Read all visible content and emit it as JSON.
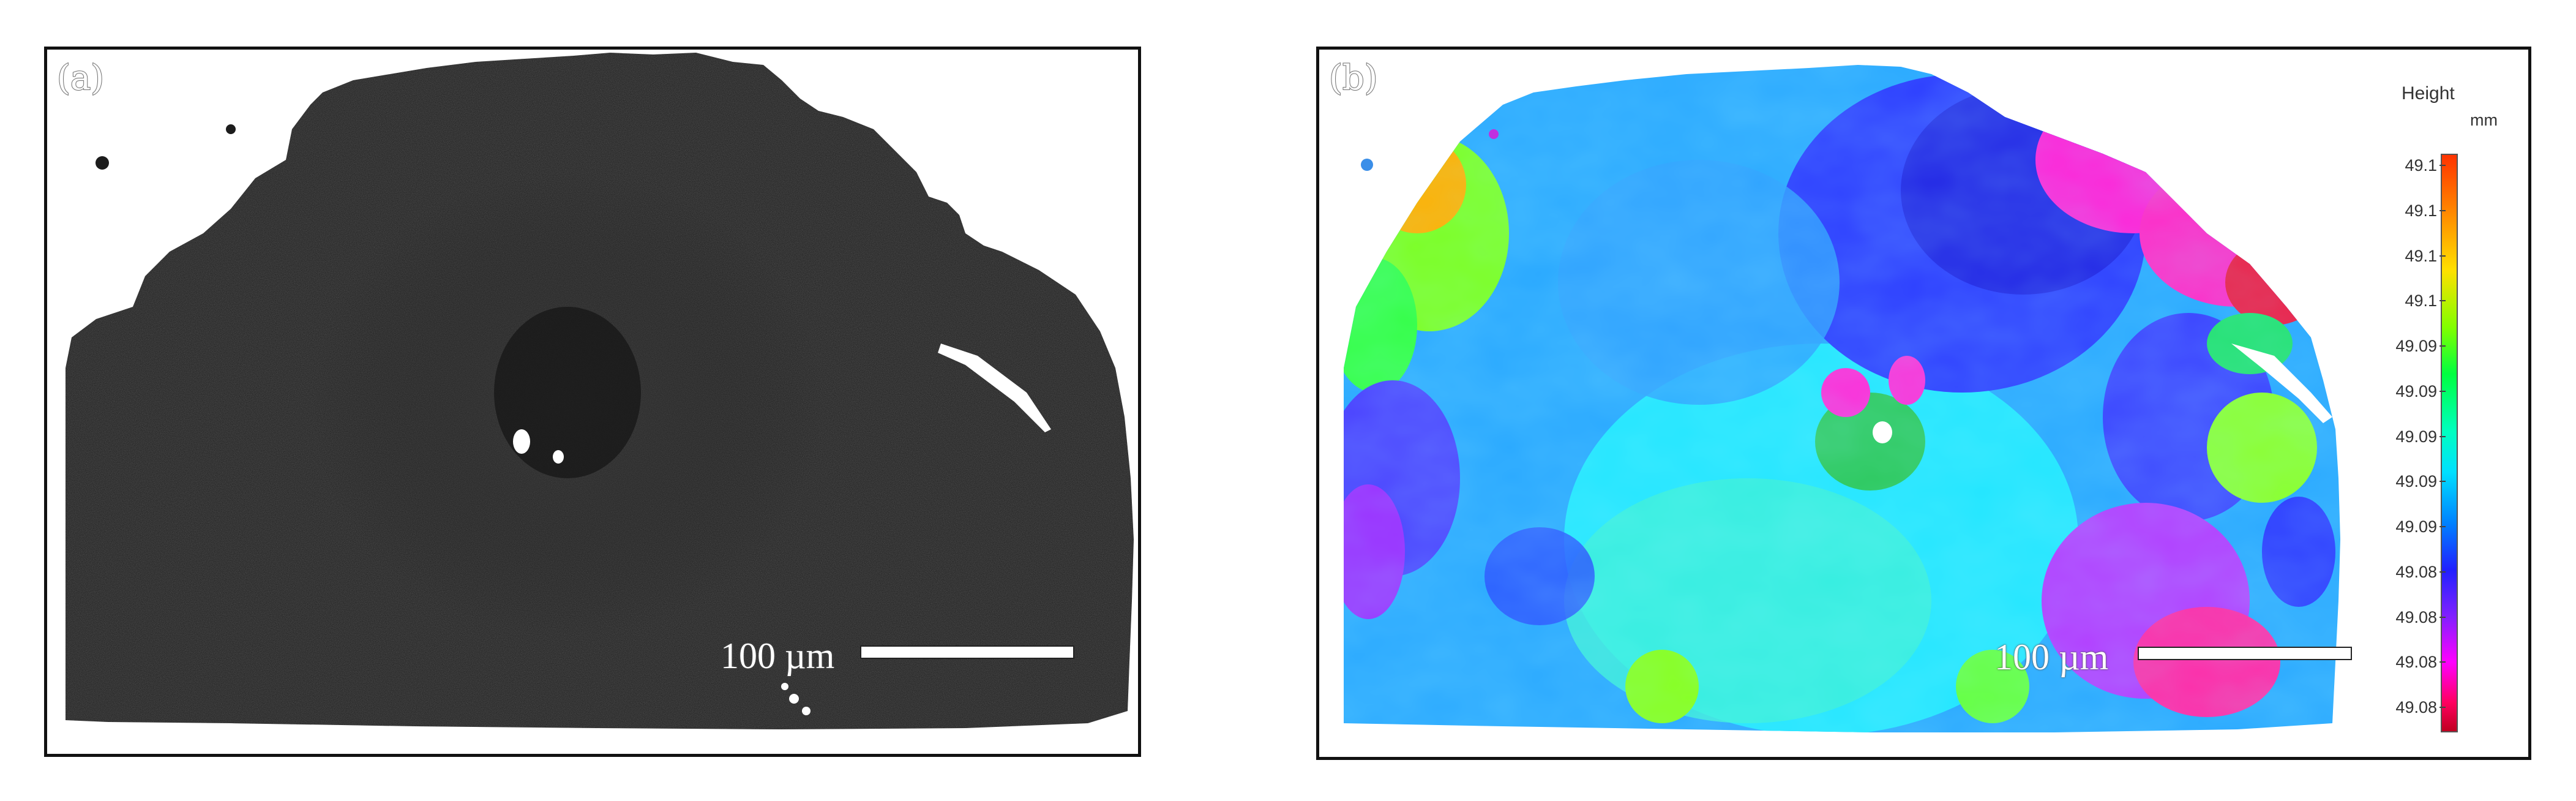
{
  "panels": [
    {
      "id": "a",
      "label": "(a)",
      "scale_bar": "100 µm"
    },
    {
      "id": "b",
      "label": "(b)",
      "scale_bar": "100 µm"
    }
  ],
  "legend": {
    "title": "Height",
    "unit": "mm",
    "ticks": [
      "49.1",
      "49.1",
      "49.1",
      "49.1",
      "49.09",
      "49.09",
      "49.09",
      "49.09",
      "49.09",
      "49.08",
      "49.08",
      "49.08",
      "49.08"
    ]
  },
  "colors": {
    "sem_background": "#1e1e1e",
    "frame": "#111111",
    "colorbar_top": "#ff3300",
    "colorbar_bottom": "#c00020"
  }
}
